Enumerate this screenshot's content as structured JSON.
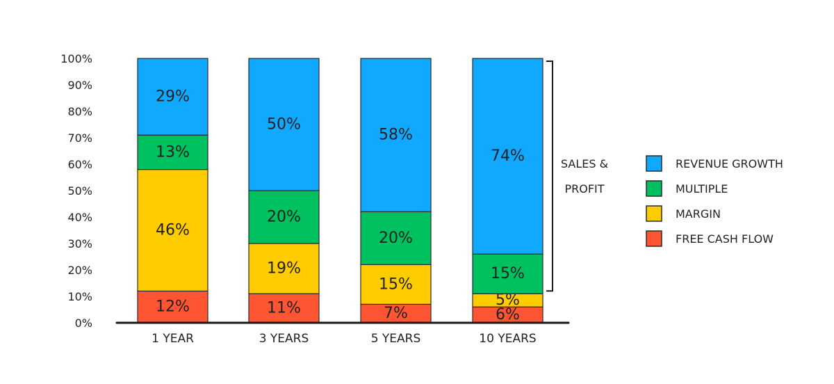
{
  "chart_data": {
    "type": "bar",
    "stacked": true,
    "categories": [
      "1 YEAR",
      "3 YEARS",
      "5 YEARS",
      "10 YEARS"
    ],
    "series": [
      {
        "name": "FREE CASH FLOW",
        "color": "#ff5533",
        "values": [
          12,
          11,
          7,
          6
        ],
        "labels": [
          "12%",
          "11%",
          "7%",
          "6%"
        ]
      },
      {
        "name": "MARGIN",
        "color": "#ffcc00",
        "values": [
          46,
          19,
          15,
          5
        ],
        "labels": [
          "46%",
          "19%",
          "15%",
          "5%"
        ]
      },
      {
        "name": "MULTIPLE",
        "color": "#00c160",
        "values": [
          13,
          20,
          20,
          15
        ],
        "labels": [
          "13%",
          "20%",
          "20%",
          "15%"
        ]
      },
      {
        "name": "REVENUE GROWTH",
        "color": "#11a9ff",
        "values": [
          29,
          50,
          58,
          74
        ],
        "labels": [
          "29%",
          "50%",
          "58%",
          "74%"
        ]
      }
    ],
    "legend_order": [
      "REVENUE GROWTH",
      "MULTIPLE",
      "MARGIN",
      "FREE CASH FLOW"
    ],
    "yticks": [
      "0%",
      "10%",
      "20%",
      "30%",
      "40%",
      "50%",
      "60%",
      "70%",
      "80%",
      "90%",
      "100%"
    ],
    "ylim": [
      0,
      100
    ],
    "grid": false,
    "legend_position": "right",
    "annotation": {
      "lines": [
        "SALES &",
        "PROFIT"
      ],
      "spans_series": [
        "MULTIPLE",
        "REVENUE GROWTH"
      ],
      "category": "10 YEARS"
    }
  }
}
